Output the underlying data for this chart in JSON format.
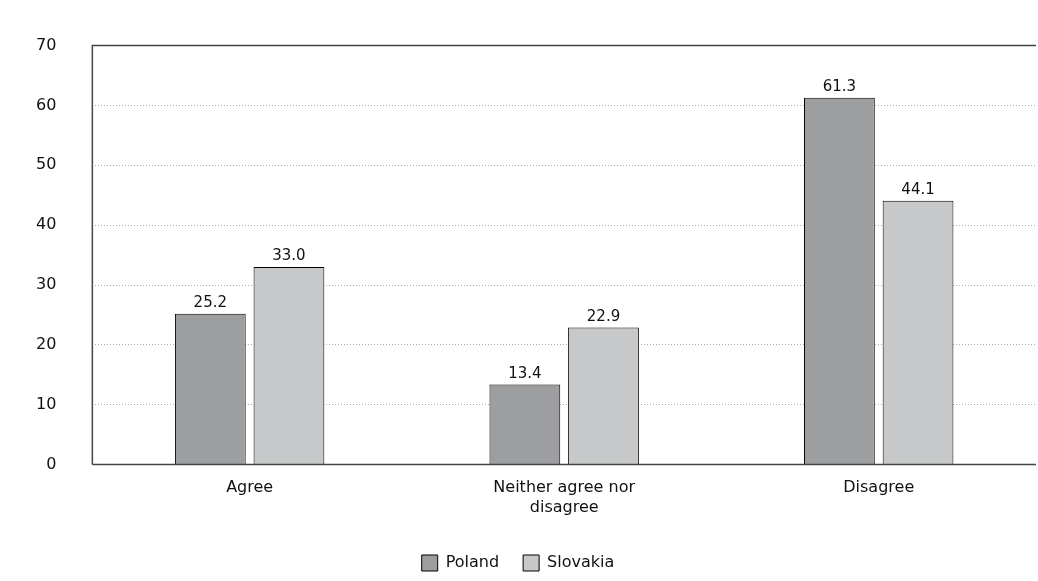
{
  "chart_data": {
    "type": "bar",
    "categories": [
      "Agree",
      "Neither agree nor disagree",
      "Disagree"
    ],
    "series": [
      {
        "name": "Poland",
        "color": "#9d9e9f",
        "values": [
          25.2,
          13.4,
          61.3
        ],
        "value_labels": [
          "25.2",
          "13.4",
          "61.3"
        ]
      },
      {
        "name": "Slovakia",
        "color": "#c7c8c9",
        "values": [
          33.0,
          22.9,
          44.1
        ],
        "value_labels": [
          "33.0",
          "22.9",
          "44.1"
        ]
      }
    ],
    "ylim": [
      0,
      70
    ],
    "yticks": [
      0,
      10,
      20,
      30,
      40,
      50,
      60,
      70
    ],
    "grid": "y",
    "legend": "bottom"
  }
}
